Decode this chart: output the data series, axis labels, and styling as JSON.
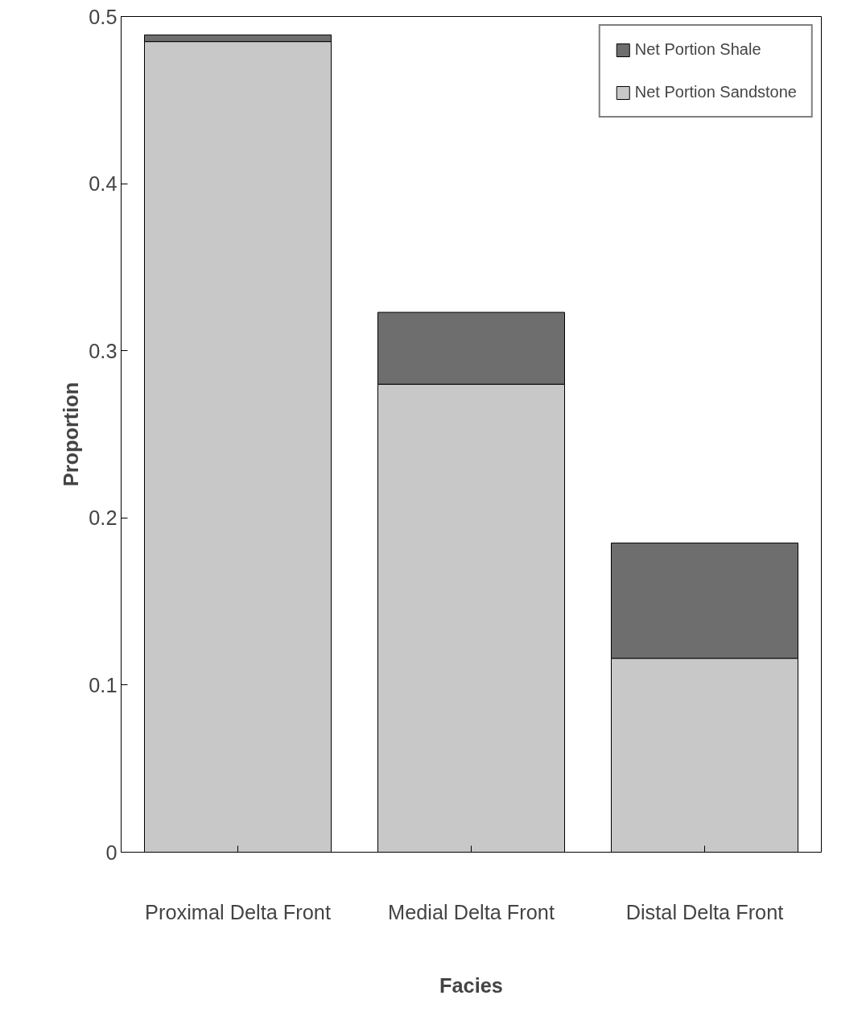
{
  "chart_data": {
    "type": "bar",
    "stacked": true,
    "xlabel": "Facies",
    "ylabel": "Proportion",
    "categories": [
      "Proximal Delta Front",
      "Medial Delta Front",
      "Distal Delta Front"
    ],
    "series": [
      {
        "name": "Net Portion Sandstone",
        "color": "#c8c8c8",
        "values": [
          0.485,
          0.28,
          0.116
        ]
      },
      {
        "name": "Net Portion Shale",
        "color": "#6e6e6e",
        "values": [
          0.004,
          0.043,
          0.069
        ]
      }
    ],
    "ylim": [
      0,
      0.5
    ],
    "yticks": [
      0,
      0.1,
      0.2,
      0.3,
      0.4,
      0.5
    ],
    "grid": false,
    "legend": "top right"
  }
}
